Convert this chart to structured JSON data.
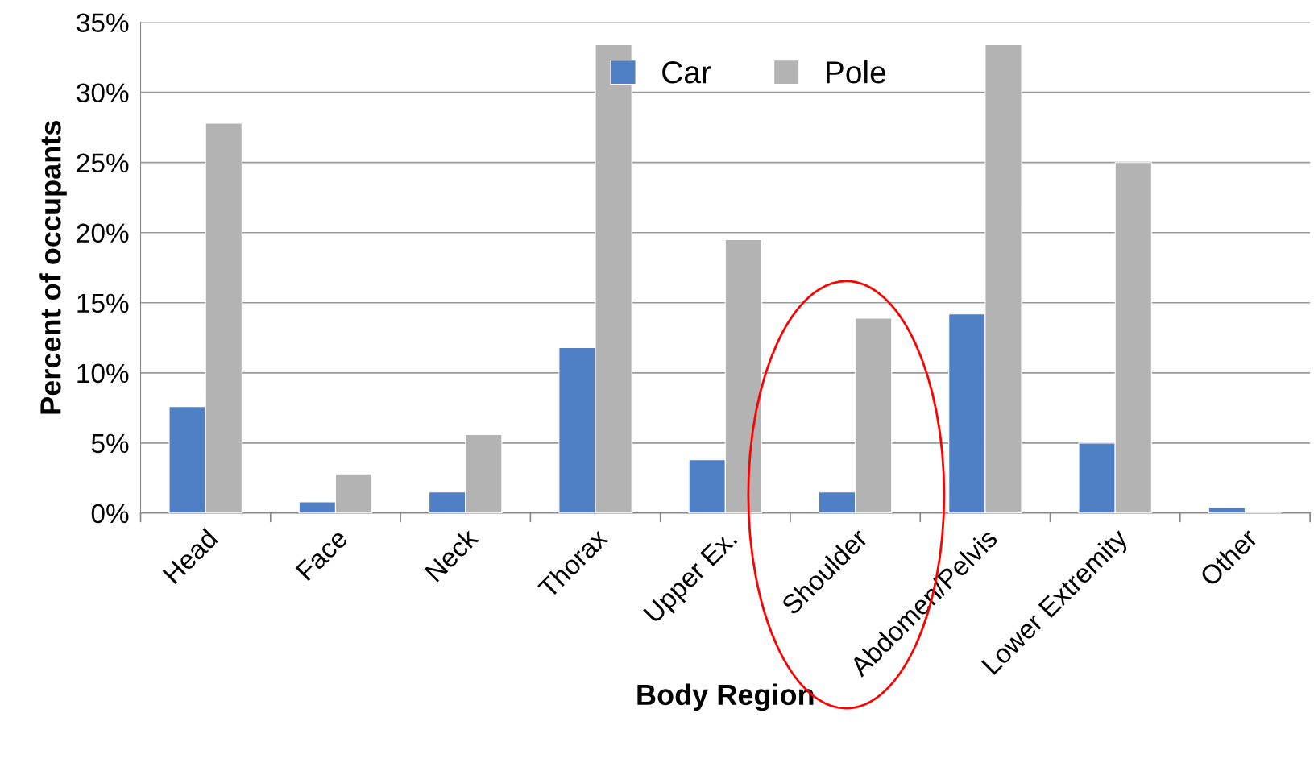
{
  "chart_data": {
    "type": "bar",
    "xlabel": "Body Region",
    "ylabel": "Percent of occupants",
    "categories": [
      "Head",
      "Face",
      "Neck",
      "Thorax",
      "Upper Ex.",
      "Shoulder",
      "Abdomen/Pelvis",
      "Lower Extremity",
      "Other"
    ],
    "series": [
      {
        "name": "Car",
        "color": "#4f7fc4",
        "values": [
          7.6,
          0.8,
          1.5,
          11.8,
          3.8,
          1.5,
          14.2,
          5.0,
          0.4
        ]
      },
      {
        "name": "Pole",
        "color": "#b3b3b3",
        "values": [
          27.8,
          2.8,
          5.6,
          33.4,
          19.5,
          13.9,
          33.4,
          25.0,
          0
        ]
      }
    ],
    "ylim": [
      0,
      35
    ],
    "yticks": [
      {
        "value": 0,
        "label": "0%"
      },
      {
        "value": 5,
        "label": "5%"
      },
      {
        "value": 10,
        "label": "10%"
      },
      {
        "value": 15,
        "label": "15%"
      },
      {
        "value": 20,
        "label": "20%"
      },
      {
        "value": 25,
        "label": "25%"
      },
      {
        "value": 30,
        "label": "30%"
      },
      {
        "value": 35,
        "label": "35%"
      }
    ],
    "grid": "y",
    "legend": "top"
  }
}
